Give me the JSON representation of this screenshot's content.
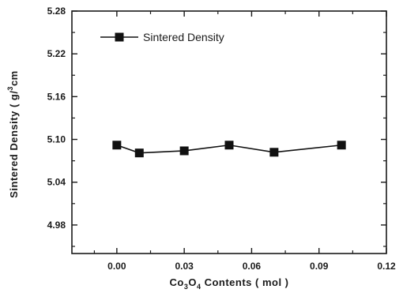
{
  "chart_data": {
    "type": "line",
    "x": [
      0.0,
      0.01,
      0.03,
      0.05,
      0.07,
      0.1
    ],
    "series": [
      {
        "name": "Sintered Density",
        "values": [
          5.092,
          5.081,
          5.084,
          5.092,
          5.082,
          5.092
        ],
        "marker": "square",
        "color": "#111111"
      }
    ],
    "xlabel": "Co3O4 Contents ( mol )",
    "xlabel_parts": {
      "pre": "Co",
      "sub1": "3",
      "mid": "O",
      "sub2": "4",
      "post": " Contents ( mol )"
    },
    "ylabel": "Sintered Density ( g/cm3 )",
    "ylabel_parts": {
      "pre": "Sintered Density ( g/",
      "sup": "3",
      "post": "cm"
    },
    "xlim": [
      -0.02,
      0.12
    ],
    "ylim": [
      4.94,
      5.28
    ],
    "x_ticks": [
      0.0,
      0.03,
      0.06,
      0.09,
      0.12
    ],
    "x_tick_labels": [
      "0.00",
      "0.03",
      "0.06",
      "0.09",
      "0.12"
    ],
    "y_ticks": [
      4.98,
      5.04,
      5.1,
      5.16,
      5.22,
      5.28
    ],
    "y_tick_labels": [
      "4.98",
      "5.04",
      "5.10",
      "5.16",
      "5.22",
      "5.28"
    ],
    "legend": "top-left",
    "grid": false
  }
}
